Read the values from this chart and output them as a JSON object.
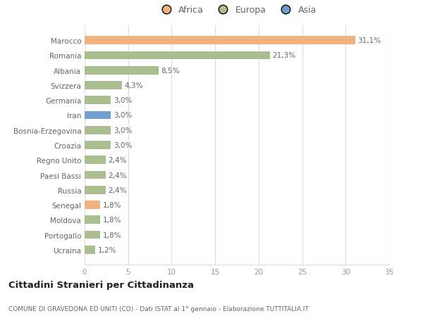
{
  "categories": [
    "Marocco",
    "Romania",
    "Albania",
    "Svizzera",
    "Germania",
    "Iran",
    "Bosnia-Erzegovina",
    "Croazia",
    "Regno Unito",
    "Paesi Bassi",
    "Russia",
    "Senegal",
    "Moldova",
    "Portogallo",
    "Ucraina"
  ],
  "values": [
    31.1,
    21.3,
    8.5,
    4.3,
    3.0,
    3.0,
    3.0,
    3.0,
    2.4,
    2.4,
    2.4,
    1.8,
    1.8,
    1.8,
    1.2
  ],
  "labels": [
    "31,1%",
    "21,3%",
    "8,5%",
    "4,3%",
    "3,0%",
    "3,0%",
    "3,0%",
    "3,0%",
    "2,4%",
    "2,4%",
    "2,4%",
    "1,8%",
    "1,8%",
    "1,8%",
    "1,2%"
  ],
  "continents": [
    "Africa",
    "Europa",
    "Europa",
    "Europa",
    "Europa",
    "Asia",
    "Europa",
    "Europa",
    "Europa",
    "Europa",
    "Europa",
    "Africa",
    "Europa",
    "Europa",
    "Europa"
  ],
  "colors": {
    "Africa": "#F2B27E",
    "Europa": "#ABBE90",
    "Asia": "#6E9FCE"
  },
  "legend_labels": [
    "Africa",
    "Europa",
    "Asia"
  ],
  "legend_colors": [
    "#F2B27E",
    "#ABBE90",
    "#6E9FCE"
  ],
  "title": "Cittadini Stranieri per Cittadinanza",
  "subtitle": "COMUNE DI GRAVEDONA ED UNITI (CO) - Dati ISTAT al 1° gennaio - Elaborazione TUTTITALIA.IT",
  "xlim": [
    0,
    35
  ],
  "xticks": [
    0,
    5,
    10,
    15,
    20,
    25,
    30,
    35
  ],
  "background_color": "#ffffff",
  "plot_bg_color": "#ffffff",
  "grid_color": "#dddddd"
}
